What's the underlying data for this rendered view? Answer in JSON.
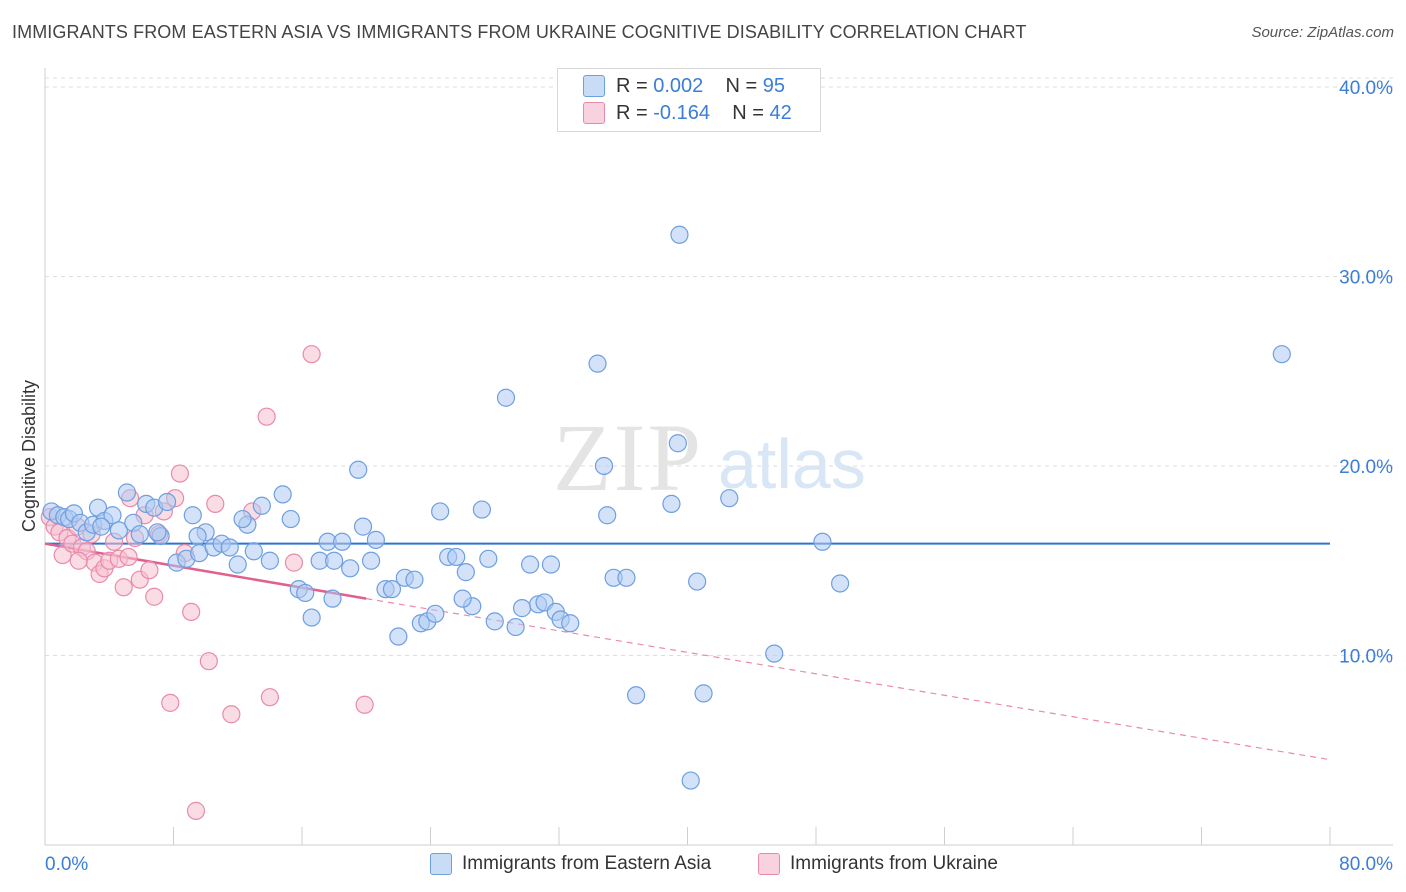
{
  "title": "IMMIGRANTS FROM EASTERN ASIA VS IMMIGRANTS FROM UKRAINE COGNITIVE DISABILITY CORRELATION CHART",
  "source": "Source: ZipAtlas.com",
  "watermark": {
    "zip": "ZIP",
    "atlas": "atlas"
  },
  "legend": {
    "rows": [
      {
        "r_label": "R =",
        "r_value": "0.002",
        "n_label": "N =",
        "n_value": "95"
      },
      {
        "r_label": "R =",
        "r_value": "-0.164",
        "n_label": "N =",
        "n_value": "42"
      }
    ]
  },
  "colors": {
    "blue_fill": "#aecbf2",
    "blue_stroke": "#6e9fe0",
    "blue_line": "#2f74d0",
    "pink_fill": "#f5bfd0",
    "pink_stroke": "#e98aab",
    "pink_line": "#e0608f",
    "axis_text": "#3b7dd8",
    "grid": "#dedede"
  },
  "chart_data": {
    "type": "scatter",
    "title": "IMMIGRANTS FROM EASTERN ASIA VS IMMIGRANTS FROM UKRAINE COGNITIVE DISABILITY CORRELATION CHART",
    "xlabel": "",
    "ylabel": "Cognitive Disability",
    "xlim": [
      0,
      80
    ],
    "ylim": [
      0,
      41
    ],
    "x_tick_labels": [
      "0.0%",
      "80.0%"
    ],
    "y_ticks": [
      10,
      20,
      30,
      40
    ],
    "y_tick_labels": [
      "10.0%",
      "20.0%",
      "30.0%",
      "40.0%"
    ],
    "grid": true,
    "legend_position": "top-center",
    "series": [
      {
        "name": "Immigrants from Eastern Asia",
        "color": "#aecbf2",
        "trend": {
          "style": "solid",
          "x": [
            0,
            80
          ],
          "y": [
            15.9,
            15.9
          ]
        },
        "points": [
          [
            0.4,
            17.6
          ],
          [
            0.8,
            17.4
          ],
          [
            1.2,
            17.3
          ],
          [
            1.5,
            17.2
          ],
          [
            1.8,
            17.5
          ],
          [
            2.2,
            17.0
          ],
          [
            2.6,
            16.5
          ],
          [
            3.0,
            16.9
          ],
          [
            3.3,
            17.8
          ],
          [
            3.7,
            17.1
          ],
          [
            4.2,
            17.4
          ],
          [
            4.6,
            16.6
          ],
          [
            5.1,
            18.6
          ],
          [
            5.5,
            17.0
          ],
          [
            5.9,
            16.4
          ],
          [
            6.3,
            18.0
          ],
          [
            6.8,
            17.8
          ],
          [
            7.2,
            16.3
          ],
          [
            7.6,
            18.1
          ],
          [
            8.2,
            14.9
          ],
          [
            8.8,
            15.1
          ],
          [
            9.2,
            17.4
          ],
          [
            9.6,
            15.4
          ],
          [
            10.0,
            16.5
          ],
          [
            10.5,
            15.7
          ],
          [
            11.0,
            15.9
          ],
          [
            11.5,
            15.7
          ],
          [
            12.0,
            14.8
          ],
          [
            12.6,
            16.9
          ],
          [
            13.0,
            15.5
          ],
          [
            13.5,
            17.9
          ],
          [
            14.0,
            15.0
          ],
          [
            14.8,
            18.5
          ],
          [
            15.3,
            17.2
          ],
          [
            15.8,
            13.5
          ],
          [
            16.2,
            13.3
          ],
          [
            16.6,
            12.0
          ],
          [
            17.1,
            15.0
          ],
          [
            17.6,
            16.0
          ],
          [
            18.0,
            15.0
          ],
          [
            18.5,
            16.0
          ],
          [
            19.0,
            14.6
          ],
          [
            19.5,
            19.8
          ],
          [
            19.8,
            16.8
          ],
          [
            20.3,
            15.0
          ],
          [
            20.6,
            16.1
          ],
          [
            21.2,
            13.5
          ],
          [
            21.6,
            13.5
          ],
          [
            22.0,
            11.0
          ],
          [
            22.4,
            14.1
          ],
          [
            23.0,
            14.0
          ],
          [
            23.4,
            11.7
          ],
          [
            23.8,
            11.8
          ],
          [
            24.3,
            12.2
          ],
          [
            24.6,
            17.6
          ],
          [
            25.1,
            15.2
          ],
          [
            25.6,
            15.2
          ],
          [
            26.2,
            14.4
          ],
          [
            26.6,
            12.6
          ],
          [
            27.2,
            17.7
          ],
          [
            27.6,
            15.1
          ],
          [
            28.0,
            11.8
          ],
          [
            28.7,
            23.6
          ],
          [
            29.3,
            11.5
          ],
          [
            29.7,
            12.5
          ],
          [
            30.2,
            14.8
          ],
          [
            30.7,
            12.7
          ],
          [
            31.1,
            12.8
          ],
          [
            31.5,
            14.8
          ],
          [
            31.8,
            12.3
          ],
          [
            32.1,
            11.9
          ],
          [
            32.7,
            11.7
          ],
          [
            34.4,
            25.4
          ],
          [
            34.8,
            20.0
          ],
          [
            35.0,
            17.4
          ],
          [
            35.4,
            14.1
          ],
          [
            36.2,
            14.1
          ],
          [
            36.8,
            7.9
          ],
          [
            39.0,
            18.0
          ],
          [
            39.4,
            21.2
          ],
          [
            40.2,
            3.4
          ],
          [
            40.6,
            13.9
          ],
          [
            41.0,
            8.0
          ],
          [
            39.5,
            32.2
          ],
          [
            42.6,
            18.3
          ],
          [
            45.4,
            10.1
          ],
          [
            48.4,
            16.0
          ],
          [
            49.5,
            13.8
          ],
          [
            77.0,
            25.9
          ],
          [
            7.0,
            16.5
          ],
          [
            3.5,
            16.8
          ],
          [
            9.5,
            16.3
          ],
          [
            12.3,
            17.2
          ],
          [
            17.9,
            13.0
          ],
          [
            26.0,
            13.0
          ]
        ]
      },
      {
        "name": "Immigrants from Ukraine",
        "color": "#f5bfd0",
        "trend": {
          "style": "solid",
          "x": [
            0,
            20
          ],
          "y": [
            15.9,
            13.0
          ],
          "extension": {
            "style": "dashed",
            "x": [
              20,
              80
            ],
            "y": [
              13.0,
              4.5
            ]
          }
        },
        "points": [
          [
            0.3,
            17.3
          ],
          [
            0.6,
            16.8
          ],
          [
            0.9,
            16.5
          ],
          [
            1.1,
            15.3
          ],
          [
            1.4,
            16.2
          ],
          [
            1.7,
            15.9
          ],
          [
            2.0,
            16.8
          ],
          [
            2.3,
            15.7
          ],
          [
            2.6,
            15.5
          ],
          [
            2.9,
            16.4
          ],
          [
            3.1,
            14.9
          ],
          [
            3.4,
            14.3
          ],
          [
            3.7,
            14.6
          ],
          [
            4.0,
            15.0
          ],
          [
            4.3,
            16.0
          ],
          [
            4.6,
            15.1
          ],
          [
            4.9,
            13.6
          ],
          [
            5.2,
            15.2
          ],
          [
            5.6,
            16.2
          ],
          [
            5.9,
            14.0
          ],
          [
            6.2,
            17.4
          ],
          [
            6.5,
            14.5
          ],
          [
            6.8,
            13.1
          ],
          [
            7.1,
            16.4
          ],
          [
            7.4,
            17.6
          ],
          [
            7.8,
            7.5
          ],
          [
            8.1,
            18.3
          ],
          [
            8.4,
            19.6
          ],
          [
            8.7,
            15.4
          ],
          [
            9.1,
            12.3
          ],
          [
            9.4,
            1.8
          ],
          [
            10.2,
            9.7
          ],
          [
            10.6,
            18.0
          ],
          [
            11.6,
            6.9
          ],
          [
            12.9,
            17.6
          ],
          [
            13.8,
            22.6
          ],
          [
            14.0,
            7.8
          ],
          [
            15.5,
            14.9
          ],
          [
            16.6,
            25.9
          ],
          [
            19.9,
            7.4
          ],
          [
            5.3,
            18.3
          ],
          [
            2.1,
            15.0
          ]
        ]
      }
    ]
  },
  "bottom_legend": [
    {
      "label": "Immigrants from Eastern Asia"
    },
    {
      "label": "Immigrants from Ukraine"
    }
  ]
}
